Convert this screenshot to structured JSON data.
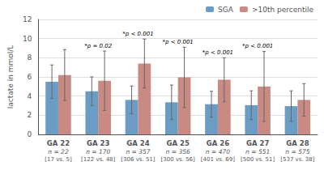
{
  "chart_data": {
    "type": "bar",
    "categories": [
      "GA 22\nn = 22\n[17 vs. 5]",
      "GA 23\nn = 170\n[122 vs. 48]",
      "GA 24\nn = 357\n[306 vs. 51]",
      "GA 25\nn = 356\n[300 vs. 56]",
      "GA 26\nn = 470\n[401 vs. 69]",
      "GA 27\nn = 551\n[500 vs. 51]",
      "GA 28\nn = 575\n[537 vs. 38]"
    ],
    "series": [
      {
        "name": "SGA",
        "color": "#6b9dc4",
        "values": [
          5.5,
          4.5,
          3.6,
          3.35,
          3.15,
          3.05,
          2.95
        ],
        "errors": [
          1.75,
          1.5,
          1.45,
          1.8,
          1.35,
          1.5,
          1.6
        ]
      },
      {
        "name": ">10th percentile",
        "color": "#c98a84",
        "values": [
          6.2,
          5.6,
          7.4,
          5.95,
          5.7,
          5.0,
          3.6
        ],
        "errors": [
          2.65,
          3.1,
          2.55,
          3.15,
          2.3,
          3.65,
          1.7
        ]
      }
    ],
    "annotations": [
      null,
      "*p = 0.02",
      "*p < 0.001",
      "*p < 0.001",
      "*p < 0.001",
      "*p < 0.001",
      null
    ],
    "ylabel": "lactate in mmol/L",
    "ylim": [
      0,
      12
    ],
    "yticks": [
      0,
      2,
      4,
      6,
      8,
      10,
      12
    ],
    "grid": true,
    "legend": "upper right"
  }
}
